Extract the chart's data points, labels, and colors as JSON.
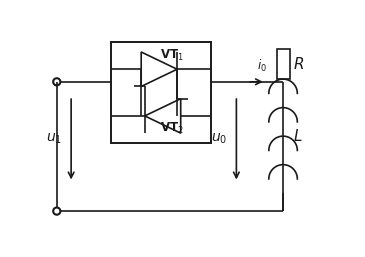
{
  "background_color": "#ffffff",
  "line_color": "#1a1a1a",
  "line_width": 1.2,
  "fig_width": 3.65,
  "fig_height": 2.57,
  "dpi": 100,
  "labels": {
    "VT1": "VT$_1$",
    "VT2": "VT$_2$",
    "i0": "$i_0$",
    "u1": "$u_1$",
    "u0": "$u_0$",
    "R": "$R$",
    "L": "$L$"
  }
}
